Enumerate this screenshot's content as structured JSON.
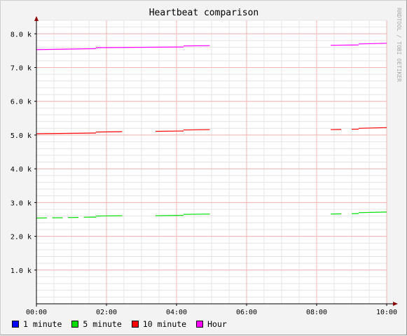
{
  "chart_data": {
    "type": "line",
    "title": "Heartbeat comparison",
    "watermark": "RRDTOOL / TOBI OETIKER",
    "xlabel": "",
    "ylabel": "",
    "x_tick_labels": [
      "00:00",
      "02:00",
      "04:00",
      "06:00",
      "08:00",
      "10:00"
    ],
    "x_range_hours": [
      0,
      10
    ],
    "y_tick_labels": [
      "1.0 k",
      "2.0 k",
      "3.0 k",
      "4.0 k",
      "5.0 k",
      "6.0 k",
      "7.0 k",
      "8.0 k"
    ],
    "y_ticks": [
      1000,
      2000,
      3000,
      4000,
      5000,
      6000,
      7000,
      8000
    ],
    "ylim": [
      0,
      8400
    ],
    "grid": true,
    "legend_position": "bottom",
    "series": [
      {
        "name": "1 minute",
        "color": "#0000ff",
        "segments": []
      },
      {
        "name": "5 minute",
        "color": "#00dd00",
        "segments": [
          [
            [
              0.0,
              2540
            ],
            [
              0.3,
              2545
            ]
          ],
          [
            [
              0.45,
              2550
            ],
            [
              0.75,
              2550
            ]
          ],
          [
            [
              0.9,
              2555
            ],
            [
              1.2,
              2560
            ]
          ],
          [
            [
              1.35,
              2565
            ],
            [
              1.7,
              2570
            ]
          ],
          [
            [
              1.7,
              2600
            ],
            [
              2.45,
              2610
            ]
          ],
          [
            [
              3.4,
              2610
            ],
            [
              4.2,
              2620
            ]
          ],
          [
            [
              4.2,
              2650
            ],
            [
              4.95,
              2660
            ]
          ],
          [
            [
              8.4,
              2660
            ],
            [
              8.7,
              2665
            ]
          ],
          [
            [
              9.0,
              2670
            ],
            [
              9.2,
              2675
            ]
          ],
          [
            [
              9.2,
              2700
            ],
            [
              10.0,
              2720
            ]
          ]
        ]
      },
      {
        "name": "10 minute",
        "color": "#ff0000",
        "segments": [
          [
            [
              0.0,
              5040
            ],
            [
              1.7,
              5060
            ]
          ],
          [
            [
              1.7,
              5090
            ],
            [
              2.45,
              5100
            ]
          ],
          [
            [
              3.4,
              5110
            ],
            [
              4.2,
              5120
            ]
          ],
          [
            [
              4.2,
              5150
            ],
            [
              4.95,
              5160
            ]
          ],
          [
            [
              8.4,
              5160
            ],
            [
              8.7,
              5165
            ]
          ],
          [
            [
              9.0,
              5170
            ],
            [
              9.2,
              5175
            ]
          ],
          [
            [
              9.2,
              5200
            ],
            [
              10.0,
              5220
            ]
          ]
        ]
      },
      {
        "name": "Hour",
        "color": "#ff00ff",
        "segments": [
          [
            [
              0.0,
              7530
            ],
            [
              1.7,
              7560
            ]
          ],
          [
            [
              1.7,
              7590
            ],
            [
              4.2,
              7610
            ]
          ],
          [
            [
              4.2,
              7640
            ],
            [
              4.95,
              7650
            ]
          ],
          [
            [
              8.4,
              7660
            ],
            [
              9.2,
              7670
            ]
          ],
          [
            [
              9.2,
              7700
            ],
            [
              10.0,
              7720
            ]
          ]
        ]
      }
    ]
  }
}
